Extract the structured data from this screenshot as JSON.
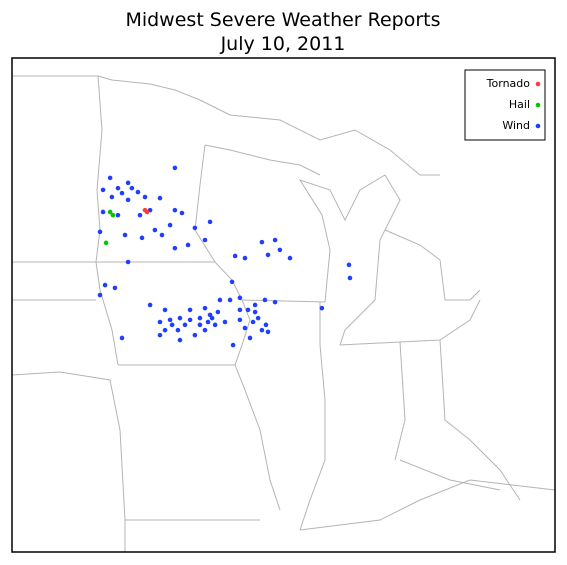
{
  "title": "Midwest Severe Weather Reports",
  "subtitle": "July 10, 2011",
  "reports": [
    {
      "name": "Tornado",
      "color": "#ff3b3b",
      "lon": [
        -94.72,
        -94.64
      ],
      "lat": [
        44.96,
        44.91
      ]
    },
    {
      "name": "Hail",
      "color": "#00c800",
      "lon": [
        -96.1,
        -95.99,
        -96.26
      ],
      "lat": [
        44.91,
        44.82,
        44.04
      ]
    },
    {
      "name": "Wind",
      "color": "#1f3fff",
      "lon": [
        -93.54,
        -96.1,
        -96.38,
        -95.79,
        -95.39,
        -95.24,
        -95.0,
        -94.72,
        -95.39,
        -95.63,
        -96.03,
        -94.13,
        -94.52,
        -94.92,
        -94.33,
        -94.05,
        -93.54,
        -93.26,
        -93.73,
        -92.75,
        -92.15,
        -93.02,
        -93.54,
        -92.35,
        -96.38,
        -95.79,
        -96.5,
        -95.51,
        -94.84,
        -95.39,
        -96.3,
        -95.91,
        -96.5,
        -90.1,
        -89.58,
        -90.77,
        -91.16,
        -89.86,
        -89.39,
        -88.99,
        -86.66,
        -86.62,
        -91.28,
        -90.97,
        -90.37,
        -89.98,
        -89.58,
        -90.65,
        -91.36,
        -91.76,
        -92.15,
        -92.55,
        -92.94,
        -93.34,
        -93.73,
        -94.13,
        -93.93,
        -93.42,
        -94.52,
        -93.93,
        -92.94,
        -92.35,
        -91.95,
        -91.56,
        -90.97,
        -90.77,
        -90.25,
        -90.1,
        -89.86,
        -90.57,
        -91.24,
        -92.35,
        -92.75,
        -93.34,
        -94.13,
        -95.63,
        -92.23,
        -92.55,
        -93.14,
        -93.65,
        -92.07,
        -91.84,
        -90.37,
        -90.97,
        -87.73,
        -89.94,
        -90.45
      ],
      "lat": [
        46.15,
        45.87,
        45.53,
        45.58,
        45.73,
        45.58,
        45.47,
        45.33,
        45.25,
        45.44,
        45.33,
        45.3,
        44.96,
        44.82,
        44.4,
        44.26,
        44.96,
        44.88,
        44.54,
        44.46,
        44.63,
        43.98,
        43.89,
        44.12,
        44.91,
        44.82,
        44.35,
        44.26,
        44.18,
        43.5,
        42.85,
        42.77,
        42.57,
        44.06,
        44.12,
        43.61,
        43.67,
        43.7,
        43.84,
        43.61,
        43.42,
        43.05,
        42.94,
        42.49,
        42.29,
        42.43,
        42.37,
        42.15,
        42.43,
        42.43,
        42.01,
        41.92,
        41.87,
        41.92,
        41.87,
        41.81,
        41.58,
        41.58,
        42.29,
        42.15,
        42.15,
        42.2,
        41.73,
        41.81,
        41.87,
        41.64,
        41.92,
        41.58,
        41.53,
        41.36,
        41.16,
        41.58,
        41.44,
        41.3,
        41.44,
        41.36,
        41.81,
        41.73,
        41.73,
        41.73,
        41.92,
        42.09,
        42.09,
        42.15,
        42.2,
        41.73,
        41.81
      ]
    }
  ]
}
